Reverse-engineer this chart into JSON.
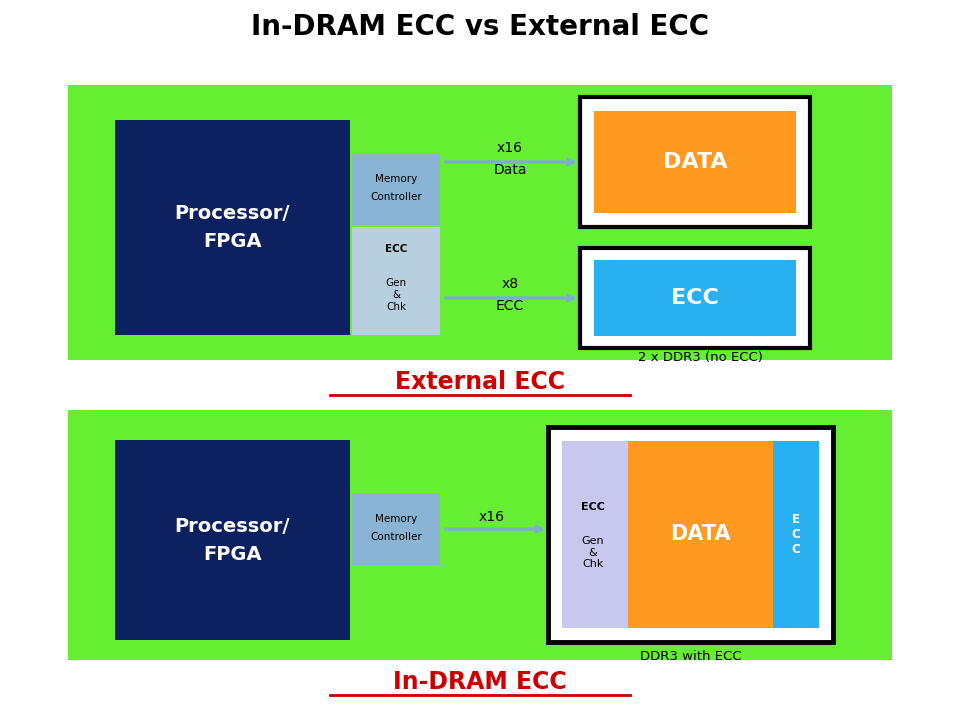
{
  "title": "In-DRAM ECC vs External ECC",
  "title_fontsize": 20,
  "bg_color": "#ffffff",
  "green_bg": "#66ee33",
  "dark_navy": "#0d2060",
  "mem_ctrl_color": "#8ab4d4",
  "ecc_gen_color": "#b8cfe0",
  "orange_color": "#ff9920",
  "blue_color": "#29b0f0",
  "lavender_color": "#c8c8ee",
  "label_external": "External ECC",
  "label_indram": "In-DRAM ECC",
  "label_color": "#cc0000",
  "label_fontsize": 17
}
